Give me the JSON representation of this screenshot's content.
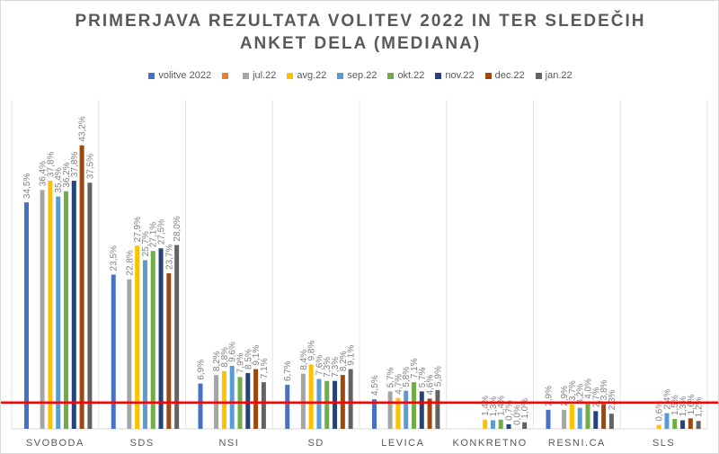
{
  "chart_data": {
    "type": "bar",
    "title": [
      "PRIMERJAVA REZULTATA VOLITEV 2022 IN TER SLEDEČIH",
      "ANKET DELA (MEDIANA)"
    ],
    "categories": [
      "SVOBODA",
      "SDS",
      "NSI",
      "SD",
      "LEVICA",
      "KONKRETNO",
      "RESNI.CA",
      "SLS"
    ],
    "series": [
      {
        "name": "volitve 2022",
        "color": "#4472C4",
        "values": [
          34.5,
          23.5,
          6.9,
          6.7,
          4.5,
          null,
          2.9,
          null
        ]
      },
      {
        "name": "",
        "color": "#ED7D31",
        "values": [
          null,
          null,
          null,
          null,
          null,
          null,
          null,
          null
        ]
      },
      {
        "name": "jul.22",
        "color": "#A5A5A5",
        "values": [
          36.4,
          22.8,
          8.2,
          8.4,
          5.7,
          null,
          2.9,
          null
        ]
      },
      {
        "name": "avg.22",
        "color": "#FFC000",
        "values": [
          37.8,
          27.9,
          8.8,
          9.8,
          4.7,
          1.4,
          3.7,
          0.6
        ]
      },
      {
        "name": "sep.22",
        "color": "#5B9BD5",
        "values": [
          35.4,
          25.7,
          9.6,
          7.6,
          5.8,
          1.3,
          3.2,
          2.4
        ]
      },
      {
        "name": "okt.22",
        "color": "#70AD47",
        "values": [
          36.2,
          27.1,
          7.9,
          7.3,
          7.1,
          1.4,
          4.0,
          1.5
        ]
      },
      {
        "name": "nov.22",
        "color": "#264478",
        "values": [
          37.8,
          27.5,
          8.5,
          7.3,
          5.7,
          0.7,
          2.7,
          1.3
        ]
      },
      {
        "name": "dec.22",
        "color": "#9E480E",
        "values": [
          43.2,
          23.7,
          9.1,
          8.2,
          4.6,
          0.0,
          3.8,
          1.6
        ]
      },
      {
        "name": "jan.22",
        "color": "#636363",
        "values": [
          37.5,
          28.0,
          7.1,
          9.1,
          5.9,
          1.0,
          2.3,
          1.2
        ]
      }
    ],
    "threshold_line": {
      "value": 4,
      "color": "#FF0000"
    },
    "ylim": [
      0,
      45
    ],
    "legend": "top",
    "grid": "vertical category separators",
    "value_format": "comma decimal with %"
  }
}
